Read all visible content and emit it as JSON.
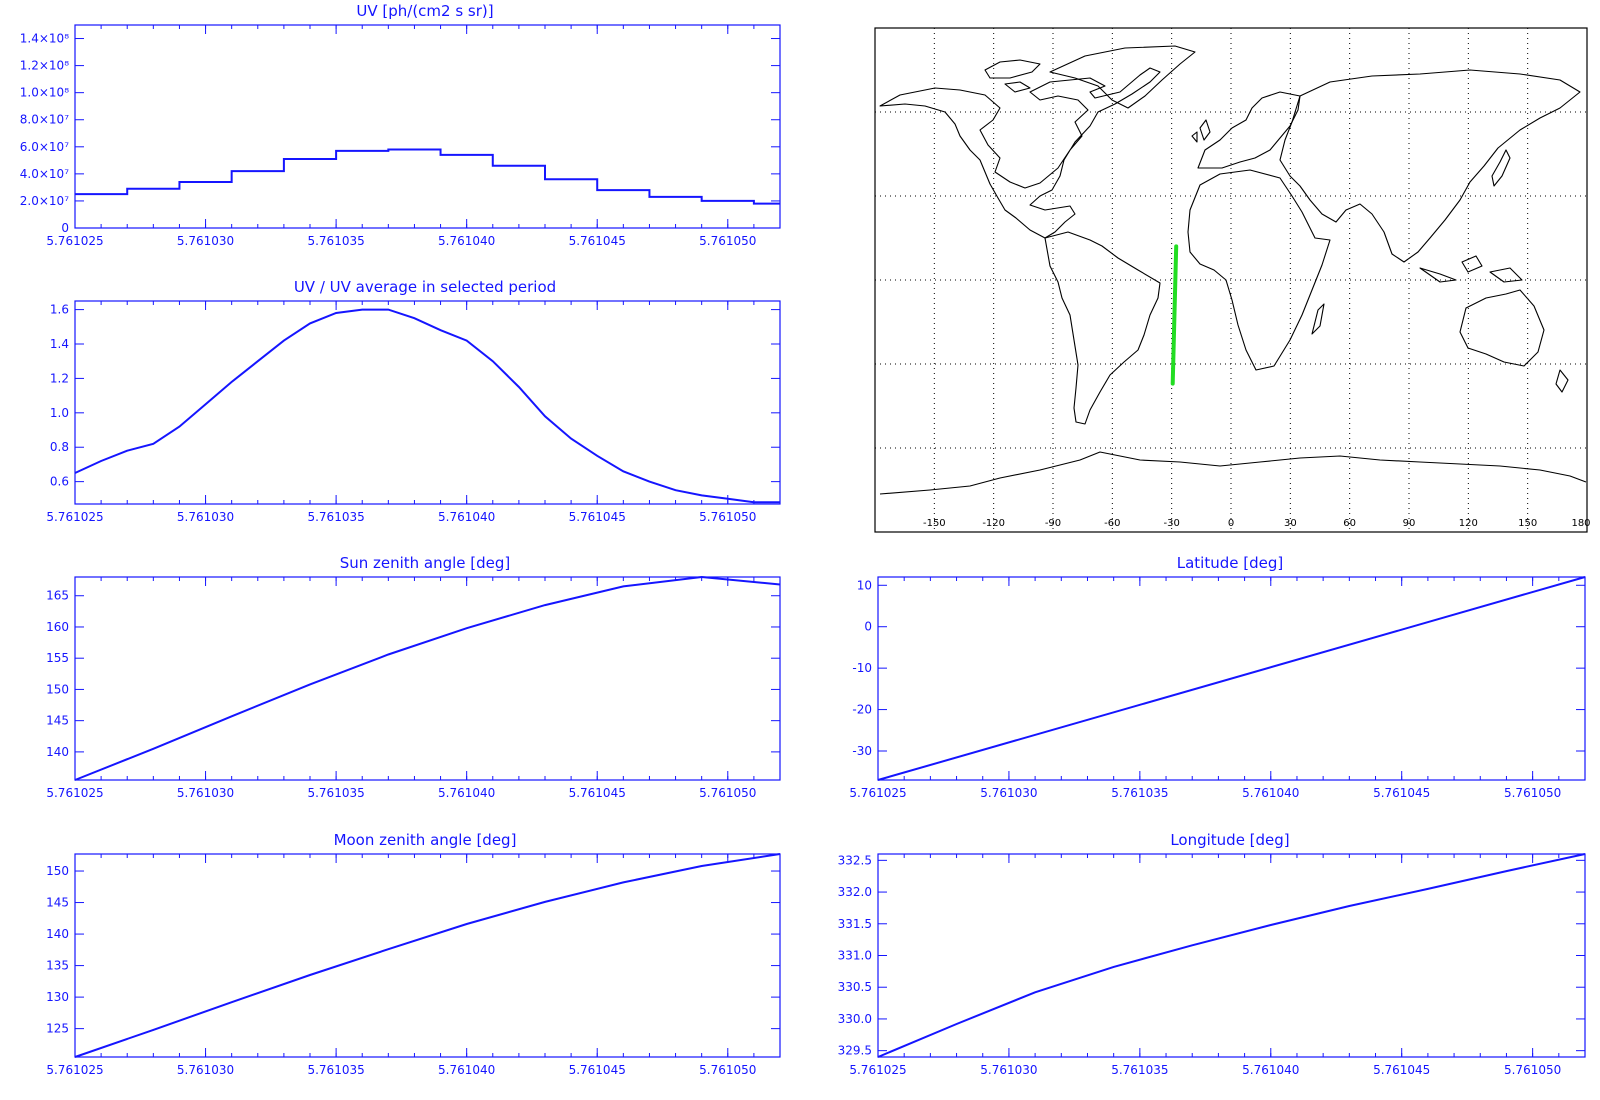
{
  "colors": {
    "axis": "#1515ff",
    "line": "#1515ff",
    "map": "#000000",
    "track": "#22dd22"
  },
  "chart_data": [
    {
      "id": "uv",
      "type": "line",
      "step": true,
      "title": "UV [ph/(cm2 s sr)]",
      "xlabel": "",
      "ylabel": "",
      "xlim": [
        5.761025,
        5.761052
      ],
      "xticks": [
        "5.761025",
        "5.761030",
        "5.761035",
        "5.761040",
        "5.761045",
        "5.761050"
      ],
      "ylim": [
        0,
        150000000
      ],
      "yticks": [
        {
          "v": 0,
          "t": "0"
        },
        {
          "v": 20000000,
          "t": "2.0×10⁷"
        },
        {
          "v": 40000000,
          "t": "4.0×10⁷"
        },
        {
          "v": 60000000,
          "t": "6.0×10⁷"
        },
        {
          "v": 80000000,
          "t": "8.0×10⁷"
        },
        {
          "v": 100000000,
          "t": "1.0×10⁸"
        },
        {
          "v": 120000000,
          "t": "1.2×10⁸"
        },
        {
          "v": 140000000,
          "t": "1.4×10⁸"
        }
      ],
      "x": [
        5.761025,
        5.761027,
        5.761029,
        5.761031,
        5.761033,
        5.761035,
        5.761037,
        5.761039,
        5.761041,
        5.761043,
        5.761045,
        5.761047,
        5.761049,
        5.761051,
        5.761052
      ],
      "y": [
        25000000,
        29000000,
        34000000,
        42000000,
        51000000,
        57000000,
        58000000,
        54000000,
        46000000,
        36000000,
        28000000,
        23000000,
        20000000,
        18000000,
        18000000
      ]
    },
    {
      "id": "ratio",
      "type": "line",
      "title": "UV / UV average in selected period",
      "xlabel": "",
      "ylabel": "",
      "xlim": [
        5.761025,
        5.761052
      ],
      "xticks": [
        "5.761025",
        "5.761030",
        "5.761035",
        "5.761040",
        "5.761045",
        "5.761050"
      ],
      "ylim": [
        0.47,
        1.65
      ],
      "yticks": [
        {
          "v": 0.6,
          "t": "0.6"
        },
        {
          "v": 0.8,
          "t": "0.8"
        },
        {
          "v": 1.0,
          "t": "1.0"
        },
        {
          "v": 1.2,
          "t": "1.2"
        },
        {
          "v": 1.4,
          "t": "1.4"
        },
        {
          "v": 1.6,
          "t": "1.6"
        }
      ],
      "x": [
        5.761025,
        5.761026,
        5.761027,
        5.761028,
        5.761029,
        5.76103,
        5.761031,
        5.761032,
        5.761033,
        5.761034,
        5.761035,
        5.761036,
        5.761037,
        5.761038,
        5.761039,
        5.76104,
        5.761041,
        5.761042,
        5.761043,
        5.761044,
        5.761045,
        5.761046,
        5.761047,
        5.761048,
        5.761049,
        5.76105,
        5.761051,
        5.761052
      ],
      "y": [
        0.65,
        0.72,
        0.78,
        0.82,
        0.92,
        1.05,
        1.18,
        1.3,
        1.42,
        1.52,
        1.58,
        1.6,
        1.6,
        1.55,
        1.48,
        1.42,
        1.3,
        1.15,
        0.98,
        0.85,
        0.75,
        0.66,
        0.6,
        0.55,
        0.52,
        0.5,
        0.48,
        0.48
      ]
    },
    {
      "id": "sza",
      "type": "line",
      "title": "Sun zenith angle [deg]",
      "xlabel": "",
      "ylabel": "",
      "xlim": [
        5.761025,
        5.761052
      ],
      "xticks": [
        "5.761025",
        "5.761030",
        "5.761035",
        "5.761040",
        "5.761045",
        "5.761050"
      ],
      "ylim": [
        135.5,
        168
      ],
      "yticks": [
        {
          "v": 140,
          "t": "140"
        },
        {
          "v": 145,
          "t": "145"
        },
        {
          "v": 150,
          "t": "150"
        },
        {
          "v": 155,
          "t": "155"
        },
        {
          "v": 160,
          "t": "160"
        },
        {
          "v": 165,
          "t": "165"
        }
      ],
      "x": [
        5.761025,
        5.761028,
        5.761031,
        5.761034,
        5.761037,
        5.76104,
        5.761043,
        5.761046,
        5.761049,
        5.761052
      ],
      "y": [
        135.5,
        140.5,
        145.7,
        150.8,
        155.6,
        159.8,
        163.5,
        166.5,
        168,
        166.8
      ]
    },
    {
      "id": "mza",
      "type": "line",
      "title": "Moon zenith angle [deg]",
      "xlabel": "",
      "ylabel": "",
      "xlim": [
        5.761025,
        5.761052
      ],
      "xticks": [
        "5.761025",
        "5.761030",
        "5.761035",
        "5.761040",
        "5.761045",
        "5.761050"
      ],
      "ylim": [
        120.5,
        152.7
      ],
      "yticks": [
        {
          "v": 125,
          "t": "125"
        },
        {
          "v": 130,
          "t": "130"
        },
        {
          "v": 135,
          "t": "135"
        },
        {
          "v": 140,
          "t": "140"
        },
        {
          "v": 145,
          "t": "145"
        },
        {
          "v": 150,
          "t": "150"
        }
      ],
      "x": [
        5.761025,
        5.761028,
        5.761031,
        5.761034,
        5.761037,
        5.76104,
        5.761043,
        5.761046,
        5.761049,
        5.761052
      ],
      "y": [
        120.5,
        124.8,
        129.2,
        133.5,
        137.6,
        141.6,
        145.1,
        148.2,
        150.8,
        152.7
      ]
    },
    {
      "id": "lat",
      "type": "line",
      "title": "Latitude [deg]",
      "xlabel": "",
      "ylabel": "",
      "xlim": [
        5.761025,
        5.761052
      ],
      "xticks": [
        "5.761025",
        "5.761030",
        "5.761035",
        "5.761040",
        "5.761045",
        "5.761050"
      ],
      "ylim": [
        -37,
        12
      ],
      "yticks": [
        {
          "v": -30,
          "t": "-30"
        },
        {
          "v": -20,
          "t": "-20"
        },
        {
          "v": -10,
          "t": "-10"
        },
        {
          "v": 0,
          "t": "0"
        },
        {
          "v": 10,
          "t": "10"
        }
      ],
      "x": [
        5.761025,
        5.761052
      ],
      "y": [
        -37,
        12
      ]
    },
    {
      "id": "lon",
      "type": "line",
      "title": "Longitude [deg]",
      "xlabel": "",
      "ylabel": "",
      "xlim": [
        5.761025,
        5.761052
      ],
      "xticks": [
        "5.761025",
        "5.761030",
        "5.761035",
        "5.761040",
        "5.761045",
        "5.761050"
      ],
      "ylim": [
        329.4,
        332.6
      ],
      "yticks": [
        {
          "v": 329.5,
          "t": "329.5"
        },
        {
          "v": 330.0,
          "t": "330.0"
        },
        {
          "v": 330.5,
          "t": "330.5"
        },
        {
          "v": 331.0,
          "t": "331.0"
        },
        {
          "v": 331.5,
          "t": "331.5"
        },
        {
          "v": 332.0,
          "t": "332.0"
        },
        {
          "v": 332.5,
          "t": "332.5"
        }
      ],
      "x": [
        5.761025,
        5.761028,
        5.761031,
        5.761034,
        5.761037,
        5.76104,
        5.761043,
        5.761046,
        5.761049,
        5.761052
      ],
      "y": [
        329.4,
        329.92,
        330.42,
        330.82,
        331.16,
        331.48,
        331.78,
        332.05,
        332.33,
        332.6
      ]
    }
  ],
  "map": {
    "xlim": [
      -180,
      180
    ],
    "ylim": [
      -90,
      90
    ],
    "lon_ticks": [
      "-150",
      "-120",
      "-90",
      "-60",
      "-30",
      "0",
      "30",
      "60",
      "90",
      "120",
      "150",
      "180"
    ],
    "lon_grid": [
      -150,
      -120,
      -90,
      -60,
      -30,
      0,
      30,
      60,
      90,
      120,
      150
    ],
    "lat_grid": [
      -60,
      -30,
      0,
      30,
      60
    ],
    "track": {
      "lon": [
        -29.5,
        -27.7
      ],
      "lat": [
        -37,
        12
      ]
    }
  }
}
